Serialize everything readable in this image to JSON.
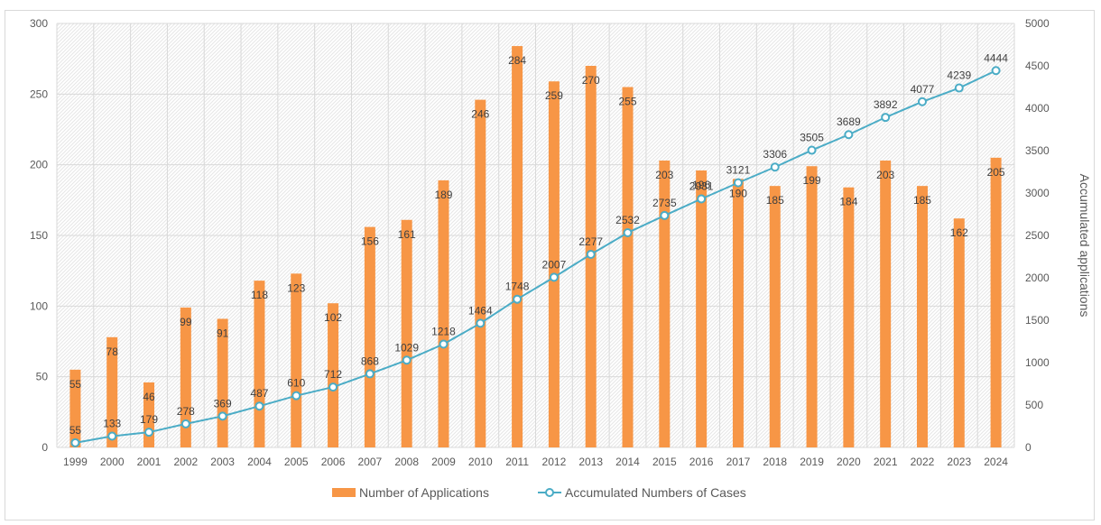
{
  "chart_data": {
    "type": "bar+line",
    "title": "",
    "categories": [
      "1999",
      "2000",
      "2001",
      "2002",
      "2003",
      "2004",
      "2005",
      "2006",
      "2007",
      "2008",
      "2009",
      "2010",
      "2011",
      "2012",
      "2013",
      "2014",
      "2015",
      "2016",
      "2017",
      "2018",
      "2019",
      "2020",
      "2021",
      "2022",
      "2023",
      "2024"
    ],
    "series": [
      {
        "name": "Number of Applications",
        "type": "bar",
        "axis": "left",
        "color": "#f79646",
        "values": [
          55,
          78,
          46,
          99,
          91,
          118,
          123,
          102,
          156,
          161,
          189,
          246,
          284,
          259,
          270,
          255,
          203,
          196,
          190,
          185,
          199,
          184,
          203,
          185,
          162,
          205
        ],
        "labels": [
          "55",
          "78",
          "46",
          "99",
          "91",
          "118",
          "123",
          "102",
          "156",
          "161",
          "189",
          "246",
          "284",
          "259",
          "270",
          "255",
          "203",
          "196",
          "190",
          "185",
          "199",
          "184",
          "203",
          "185",
          "162",
          "205"
        ]
      },
      {
        "name": "Accumulated Numbers of Cases",
        "type": "line",
        "axis": "right",
        "color": "#4bacc6",
        "values": [
          55,
          133,
          179,
          278,
          369,
          487,
          610,
          712,
          868,
          1029,
          1218,
          1464,
          1748,
          2007,
          2277,
          2532,
          2735,
          2931,
          3121,
          3306,
          3505,
          3689,
          3892,
          4077,
          4239,
          4444
        ],
        "labels": [
          "55",
          "133",
          "179",
          "278",
          "369",
          "487",
          "610",
          "712",
          "868",
          "1029",
          "1218",
          "1464",
          "1748",
          "2007",
          "2277",
          "2532",
          "2735",
          "2931",
          "3121",
          "3306",
          "3505",
          "3689",
          "3892",
          "4077",
          "4239",
          "4444"
        ]
      }
    ],
    "y_left": {
      "label": "",
      "lim": [
        0,
        300
      ],
      "ticks": [
        "0",
        "50",
        "100",
        "150",
        "200",
        "250",
        "300"
      ]
    },
    "y_right": {
      "label": "Accumulated applications",
      "lim": [
        0,
        5000
      ],
      "ticks": [
        "0",
        "500",
        "1000",
        "1500",
        "2000",
        "2500",
        "3000",
        "3500",
        "4000",
        "4500",
        "5000"
      ]
    },
    "grid": true,
    "legend": "bottom"
  }
}
